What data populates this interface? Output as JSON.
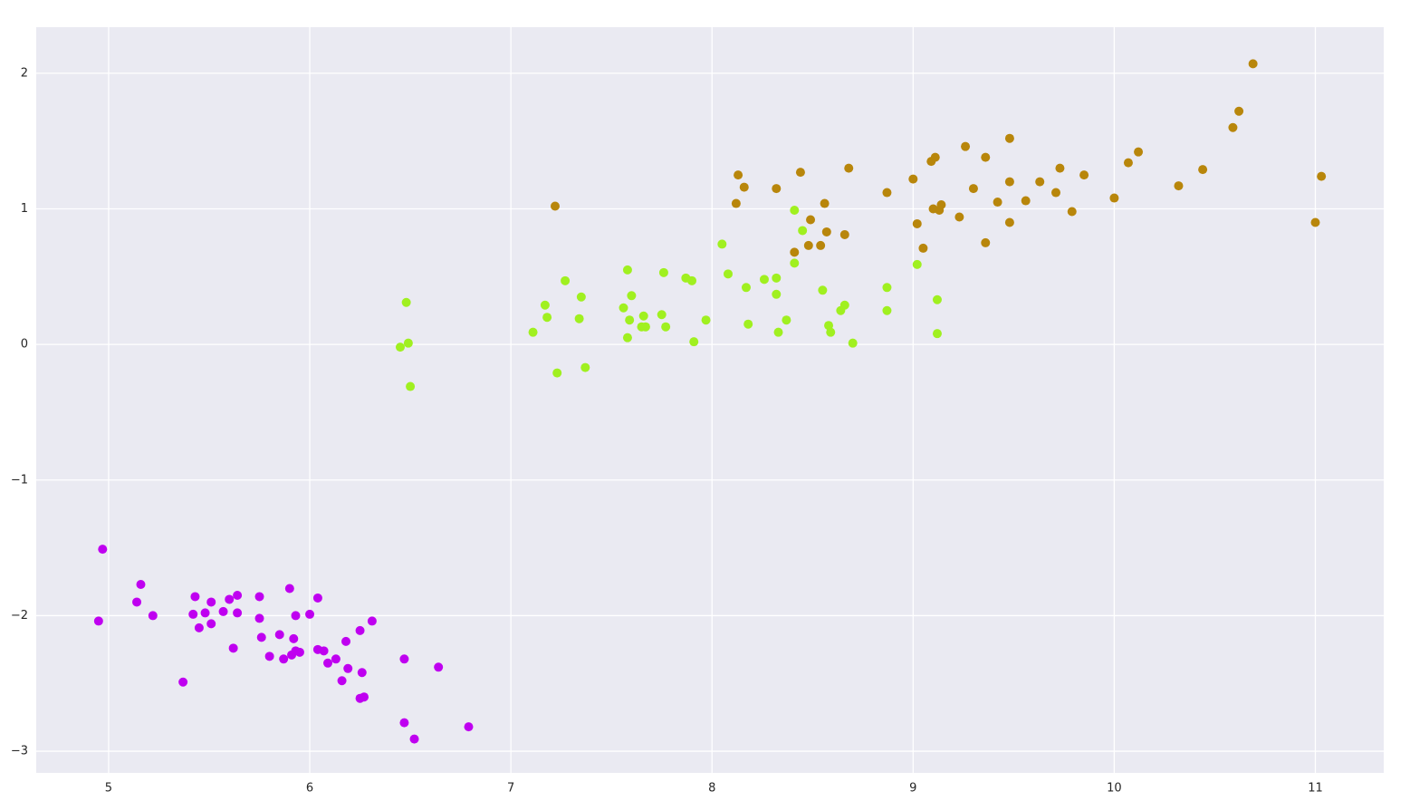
{
  "chart_data": {
    "type": "scatter",
    "grid": true,
    "background": "#eaeaf2",
    "xlim": [
      4.64,
      11.34
    ],
    "ylim": [
      -3.16,
      2.34
    ],
    "xticks": [
      5,
      6,
      7,
      8,
      9,
      10,
      11
    ],
    "yticks": [
      {
        "value": -3,
        "label": "−3"
      },
      {
        "value": -2,
        "label": "−2"
      },
      {
        "value": -1,
        "label": "−1"
      },
      0,
      1,
      2
    ],
    "series": [
      {
        "color": "#bf00f0",
        "x": [
          4.97,
          4.95,
          5.16,
          5.14,
          5.22,
          5.37,
          5.43,
          5.42,
          5.45,
          5.48,
          5.51,
          5.51,
          5.57,
          5.6,
          5.64,
          5.64,
          5.62,
          5.75,
          5.75,
          5.76,
          5.8,
          5.85,
          5.87,
          5.9,
          5.91,
          5.92,
          5.93,
          5.93,
          5.95,
          6.0,
          6.04,
          6.04,
          6.07,
          6.09,
          6.13,
          6.16,
          6.18,
          6.19,
          6.25,
          6.26,
          6.25,
          6.27,
          6.31,
          6.47,
          6.47,
          6.52,
          6.64,
          6.79
        ],
        "values": [
          -1.51,
          -2.04,
          -1.77,
          -1.9,
          -2.0,
          -2.49,
          -1.86,
          -1.99,
          -2.09,
          -1.98,
          -1.9,
          -2.06,
          -1.97,
          -1.88,
          -1.85,
          -1.98,
          -2.24,
          -1.86,
          -2.02,
          -2.16,
          -2.3,
          -2.14,
          -2.32,
          -1.8,
          -2.29,
          -2.17,
          -2.0,
          -2.26,
          -2.27,
          -1.99,
          -1.87,
          -2.25,
          -2.26,
          -2.35,
          -2.32,
          -2.48,
          -2.19,
          -2.39,
          -2.11,
          -2.42,
          -2.61,
          -2.6,
          -2.04,
          -2.32,
          -2.79,
          -2.91,
          -2.38,
          -2.82
        ]
      },
      {
        "color": "#a0f020",
        "x": [
          6.48,
          6.45,
          6.49,
          6.5,
          7.11,
          7.17,
          7.18,
          7.23,
          7.27,
          7.34,
          7.35,
          7.37,
          7.56,
          7.58,
          7.58,
          7.59,
          7.6,
          7.65,
          7.66,
          7.67,
          7.75,
          7.76,
          7.77,
          7.87,
          7.9,
          7.91,
          7.97,
          8.05,
          8.08,
          8.17,
          8.18,
          8.26,
          8.32,
          8.32,
          8.33,
          8.37,
          8.41,
          8.41,
          8.45,
          8.55,
          8.58,
          8.59,
          8.64,
          8.66,
          8.7,
          8.87,
          8.87,
          9.02,
          9.12,
          9.12
        ],
        "values": [
          0.31,
          -0.02,
          0.01,
          -0.31,
          0.09,
          0.29,
          0.2,
          -0.21,
          0.47,
          0.19,
          0.35,
          -0.17,
          0.27,
          0.55,
          0.05,
          0.18,
          0.36,
          0.13,
          0.21,
          0.13,
          0.22,
          0.53,
          0.13,
          0.49,
          0.47,
          0.02,
          0.18,
          0.74,
          0.52,
          0.42,
          0.15,
          0.48,
          0.37,
          0.49,
          0.09,
          0.18,
          0.99,
          0.6,
          0.84,
          0.4,
          0.14,
          0.09,
          0.25,
          0.29,
          0.01,
          0.42,
          0.25,
          0.59,
          0.08,
          0.33
        ]
      },
      {
        "color": "#b8860b",
        "x": [
          7.22,
          8.12,
          8.13,
          8.16,
          8.32,
          8.41,
          8.44,
          8.49,
          8.48,
          8.54,
          8.56,
          8.57,
          8.66,
          8.68,
          8.87,
          9.0,
          9.02,
          9.05,
          9.09,
          9.11,
          9.1,
          9.13,
          9.14,
          9.23,
          9.26,
          9.3,
          9.36,
          9.36,
          9.42,
          9.48,
          9.48,
          9.48,
          9.56,
          9.63,
          9.71,
          9.73,
          9.79,
          9.85,
          10.0,
          10.07,
          10.12,
          10.32,
          10.44,
          10.59,
          10.62,
          10.69,
          11.0,
          11.03
        ],
        "values": [
          1.02,
          1.04,
          1.25,
          1.16,
          1.15,
          0.68,
          1.27,
          0.92,
          0.73,
          0.73,
          1.04,
          0.83,
          0.81,
          1.3,
          1.12,
          1.22,
          0.89,
          0.71,
          1.35,
          1.38,
          1.0,
          0.99,
          1.03,
          0.94,
          1.46,
          1.15,
          0.75,
          1.38,
          1.05,
          1.52,
          1.2,
          0.9,
          1.06,
          1.2,
          1.12,
          1.3,
          0.98,
          1.25,
          1.08,
          1.34,
          1.42,
          1.17,
          1.29,
          1.6,
          1.72,
          2.07,
          0.9,
          1.24
        ]
      }
    ]
  }
}
